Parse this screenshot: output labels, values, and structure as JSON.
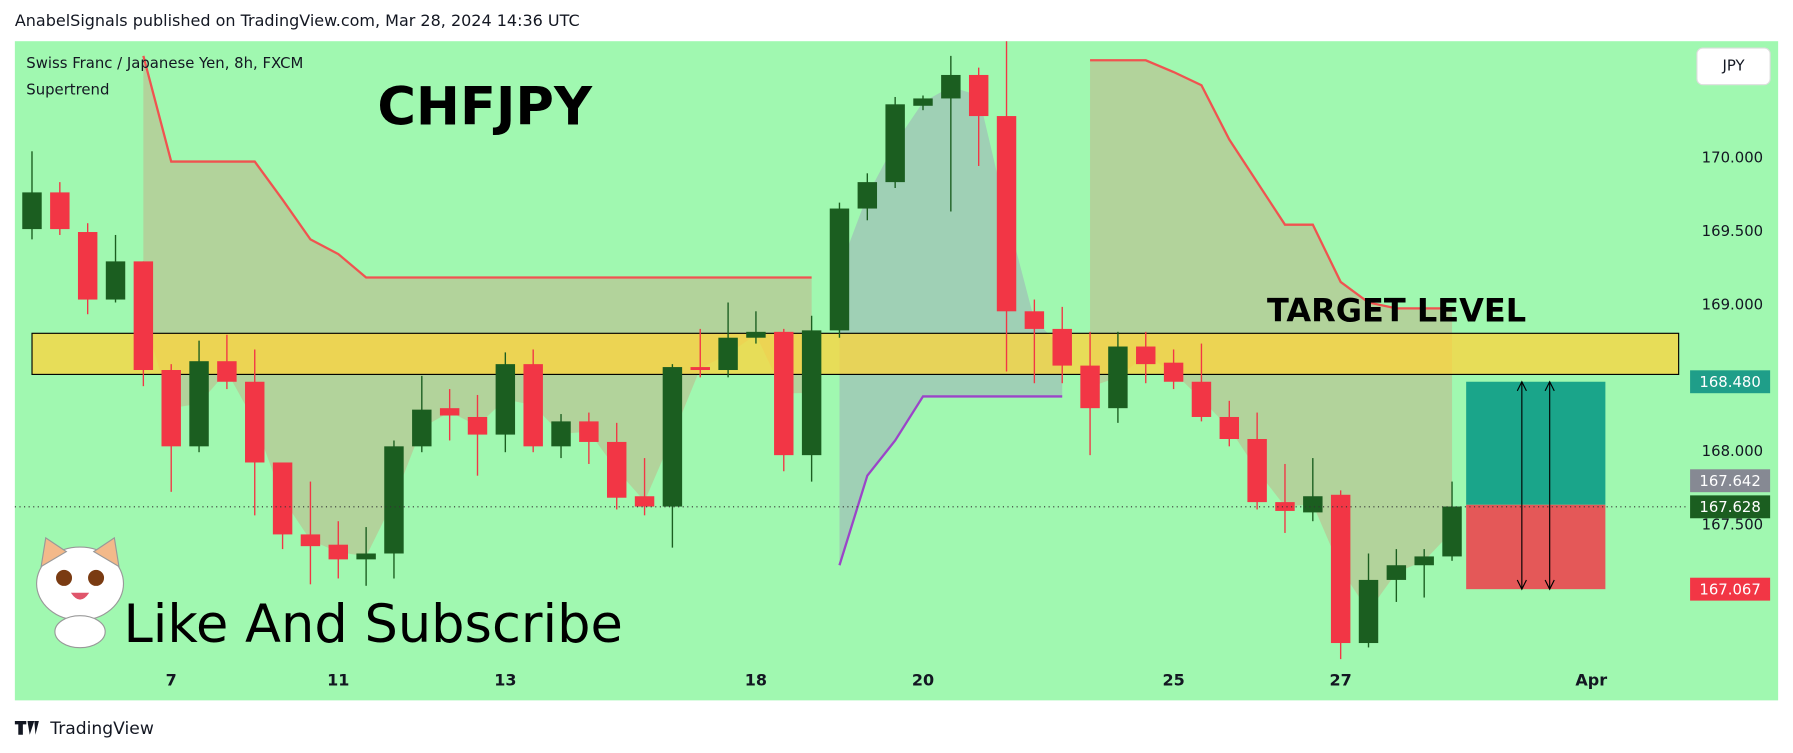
{
  "header": "AnabelSignals published on TradingView.com, Mar 28, 2024 14:36 UTC",
  "footer": "TradingView",
  "chart_data": {
    "type": "candlestick",
    "title": "CHFJPY",
    "symbol": "Swiss Franc / Japanese Yen, 8h, FXCM",
    "indicator": "Supertrend",
    "annotation": "Like And Subscribe",
    "currency": "JPY",
    "categories": [
      null,
      null,
      null,
      null,
      null,
      "7",
      null,
      null,
      null,
      null,
      null,
      "11",
      null,
      null,
      null,
      null,
      null,
      "13",
      null,
      null,
      null,
      null,
      null,
      null,
      null,
      null,
      "18",
      null,
      null,
      null,
      null,
      null,
      "20",
      null,
      null,
      null,
      null,
      null,
      null,
      null,
      null,
      "25",
      null,
      null,
      null,
      null,
      null,
      "27",
      null,
      null,
      null,
      null,
      null,
      null,
      null,
      null,
      "Apr"
    ],
    "open": [
      169.52,
      169.77,
      169.5,
      169.04,
      169.3,
      168.56,
      168.04,
      168.62,
      168.48,
      167.93,
      167.44,
      167.37,
      167.27,
      167.31,
      168.04,
      168.3,
      168.24,
      168.12,
      168.6,
      168.04,
      168.21,
      168.07,
      167.7,
      167.63,
      168.58,
      168.56,
      168.78,
      168.82,
      167.98,
      168.83,
      169.66,
      169.84,
      170.36,
      170.41,
      170.57,
      170.29,
      168.96,
      168.84,
      168.59,
      168.3,
      168.72,
      168.61,
      168.48,
      168.24,
      168.09,
      167.66,
      167.59,
      167.71,
      166.7,
      167.13,
      167.23,
      167.29,
      null,
      null,
      null,
      null,
      null
    ],
    "high": [
      170.05,
      169.84,
      169.56,
      169.48,
      169.3,
      168.6,
      168.76,
      168.8,
      168.7,
      167.93,
      167.8,
      167.53,
      167.49,
      168.08,
      168.52,
      168.43,
      168.39,
      168.68,
      168.7,
      168.26,
      168.27,
      168.2,
      167.96,
      168.6,
      168.84,
      169.02,
      168.96,
      168.84,
      168.93,
      169.7,
      169.9,
      170.42,
      170.43,
      170.7,
      170.62,
      170.8,
      169.04,
      168.99,
      168.82,
      168.82,
      168.82,
      168.7,
      168.74,
      168.35,
      168.27,
      167.92,
      167.96,
      167.74,
      167.31,
      167.34,
      167.34,
      167.8,
      null,
      null,
      null,
      null,
      null
    ],
    "low": [
      169.45,
      169.48,
      168.94,
      169.02,
      168.45,
      167.73,
      168.0,
      168.43,
      167.57,
      167.34,
      167.1,
      167.14,
      167.09,
      167.14,
      168.0,
      168.08,
      167.84,
      168.0,
      168.0,
      167.96,
      167.92,
      167.61,
      167.57,
      167.35,
      168.51,
      168.51,
      168.74,
      167.87,
      167.8,
      168.78,
      169.58,
      169.8,
      170.33,
      169.64,
      169.95,
      168.55,
      168.47,
      168.47,
      167.98,
      168.2,
      168.47,
      168.43,
      168.21,
      168.04,
      167.61,
      167.45,
      167.53,
      166.59,
      166.67,
      166.98,
      167.01,
      167.26,
      null,
      null,
      null,
      null,
      null
    ],
    "close": [
      169.77,
      169.52,
      169.04,
      169.3,
      168.56,
      168.04,
      168.62,
      168.48,
      167.93,
      167.44,
      167.36,
      167.27,
      167.31,
      168.04,
      168.29,
      168.25,
      168.12,
      168.6,
      168.04,
      168.21,
      168.07,
      167.69,
      167.63,
      168.58,
      168.56,
      168.78,
      168.82,
      167.98,
      168.83,
      169.66,
      169.84,
      170.37,
      170.41,
      170.57,
      170.29,
      168.96,
      168.84,
      168.59,
      168.3,
      168.72,
      168.6,
      168.48,
      168.24,
      168.09,
      167.66,
      167.6,
      167.7,
      166.7,
      167.13,
      167.23,
      167.29,
      167.63,
      null,
      null,
      null,
      null,
      null
    ],
    "up_color": "#1b5e20",
    "down_color": "#f23645",
    "supertrend": {
      "bear_color": "#f05350",
      "bull_color": "#9b45c8",
      "bear": [
        null,
        null,
        null,
        null,
        170.7,
        169.98,
        169.98,
        169.98,
        169.98,
        169.72,
        169.45,
        169.35,
        169.19,
        169.19,
        169.19,
        169.19,
        169.19,
        169.19,
        169.19,
        169.19,
        169.19,
        169.19,
        169.19,
        169.19,
        169.19,
        169.19,
        169.19,
        169.19,
        169.19,
        null,
        null,
        null,
        null,
        null,
        null,
        null,
        null,
        null,
        170.67,
        170.67,
        170.67,
        170.59,
        170.5,
        170.13,
        169.84,
        169.55,
        169.55,
        169.16,
        169.02,
        168.98,
        168.98,
        168.98,
        null,
        null,
        null,
        null,
        null
      ],
      "bull": [
        null,
        null,
        null,
        null,
        null,
        null,
        null,
        null,
        null,
        null,
        null,
        null,
        null,
        null,
        null,
        null,
        null,
        null,
        null,
        null,
        null,
        null,
        null,
        null,
        null,
        null,
        null,
        null,
        null,
        167.23,
        167.84,
        168.08,
        168.38,
        168.38,
        168.38,
        168.38,
        168.38,
        168.38,
        null,
        null,
        null,
        null,
        null,
        null,
        null,
        null,
        null,
        null,
        null,
        null,
        null,
        null,
        null,
        null,
        null,
        null,
        null
      ]
    },
    "ylim": [
      166.52,
      170.8
    ],
    "yticks": [
      {
        "value": 170,
        "label": "170.000"
      },
      {
        "value": 169.5,
        "label": "169.500"
      },
      {
        "value": 169,
        "label": "169.000"
      },
      {
        "value": 168,
        "label": "168.000"
      },
      {
        "value": 167.5,
        "label": "167.500"
      }
    ],
    "target_zone": {
      "label": "TARGET LEVEL",
      "top": 168.81,
      "bottom": 168.53,
      "color": "#ffd43b"
    },
    "position": {
      "target": {
        "value": 168.48,
        "label": "168.480",
        "color": "#1f9e89"
      },
      "entry": {
        "value": 167.642,
        "label": "167.642",
        "color": "#868993"
      },
      "stop": {
        "value": 167.067,
        "label": "167.067",
        "color": "#f23645"
      },
      "profit_color": "#1aa58a",
      "loss_color": "#e45858"
    },
    "last_price": {
      "value": 167.628,
      "label": "167.628",
      "color": "#1b5e20"
    }
  }
}
